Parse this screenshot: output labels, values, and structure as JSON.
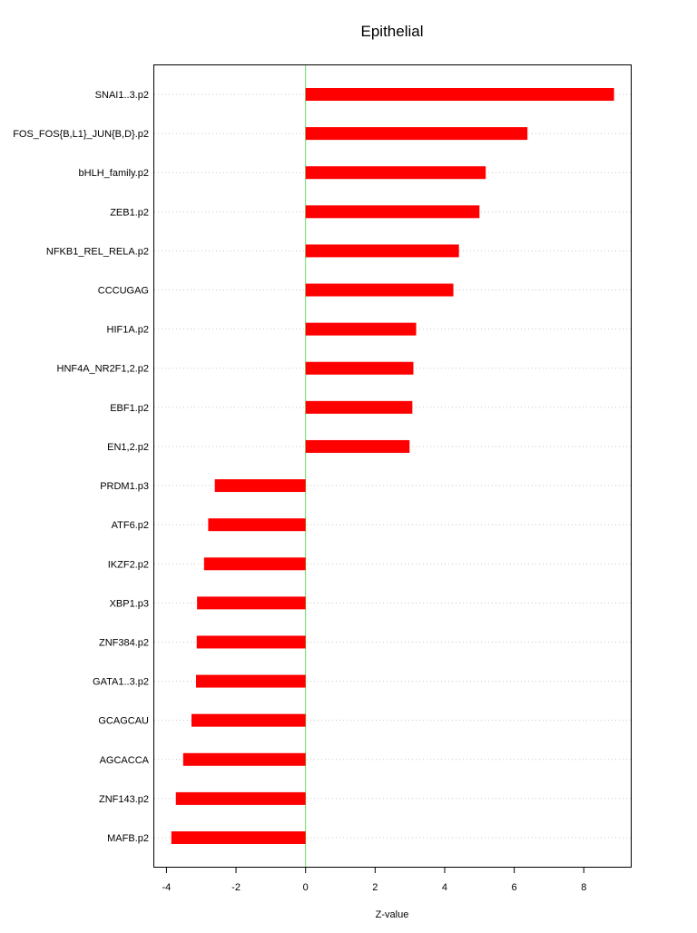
{
  "chart_data": {
    "type": "bar",
    "orientation": "horizontal",
    "title": "Epithelial",
    "xlabel": "Z-value",
    "ylabel": "",
    "xlim": [
      -4.35,
      9.35
    ],
    "xticks": [
      -4,
      -2,
      0,
      2,
      4,
      6,
      8
    ],
    "grid": "horizontal dotted",
    "zero_line": true,
    "colors": {
      "bar": "#ff0000",
      "zero_line": "#66dd66",
      "grid": "#c8c8c8",
      "frame": "#000000"
    },
    "categories": [
      "SNAI1..3.p2",
      "FOS_FOS{B,L1}_JUN{B,D}.p2",
      "bHLH_family.p2",
      "ZEB1.p2",
      "NFKB1_REL_RELA.p2",
      "CCCUGAG",
      "HIF1A.p2",
      "HNF4A_NR2F1,2.p2",
      "EBF1.p2",
      "EN1,2.p2",
      "PRDM1.p3",
      "ATF6.p2",
      "IKZF2.p2",
      "XBP1.p3",
      "ZNF384.p2",
      "GATA1..3.p2",
      "GCAGCAU",
      "AGCACCA",
      "ZNF143.p2",
      "MAFB.p2"
    ],
    "values": [
      8.87,
      6.38,
      5.18,
      5.0,
      4.41,
      4.25,
      3.18,
      3.1,
      3.07,
      2.99,
      -2.61,
      -2.8,
      -2.92,
      -3.12,
      -3.13,
      -3.15,
      -3.28,
      -3.52,
      -3.73,
      -3.86
    ]
  }
}
